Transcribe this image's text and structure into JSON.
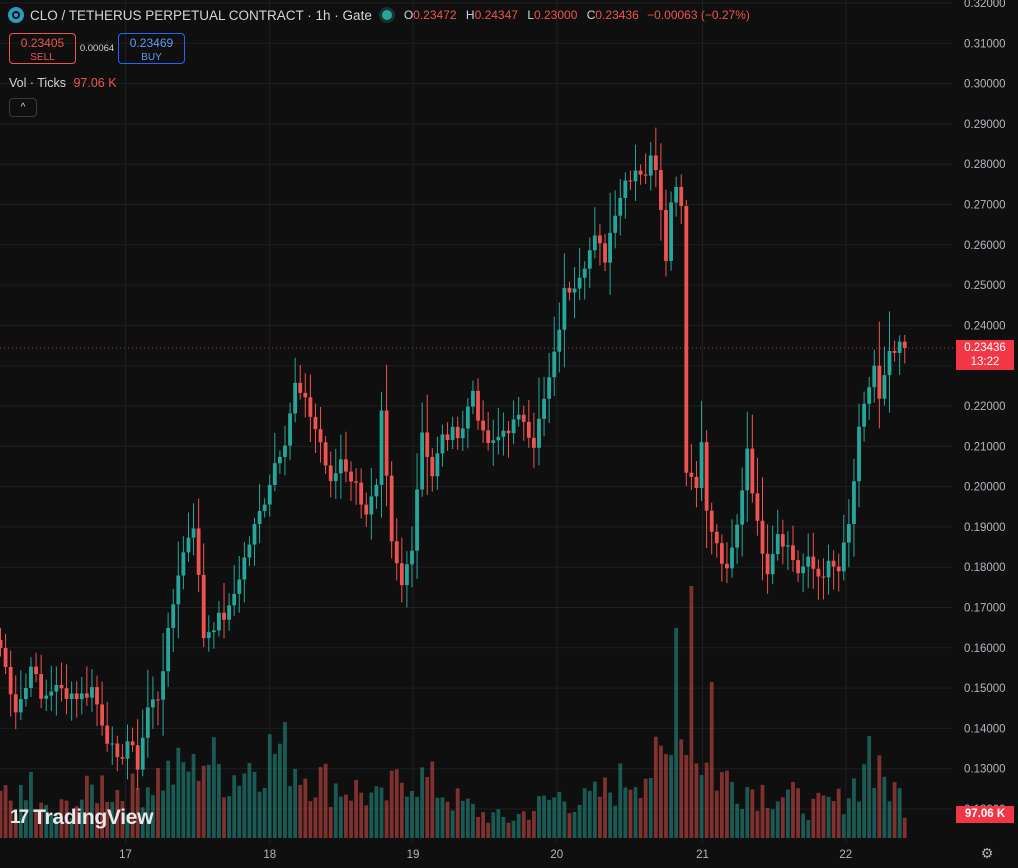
{
  "header": {
    "title": "CLO / TETHERUS PERPETUAL CONTRACT · 1h · Gate",
    "o_label": "O",
    "o": "0.23472",
    "h_label": "H",
    "h": "0.24347",
    "l_label": "L",
    "l": "0.23000",
    "c_label": "C",
    "c": "0.23436",
    "change": "−0.00063 (−0.27%)"
  },
  "trade": {
    "sell_price": "0.23405",
    "sell_label": "SELL",
    "spread": "0.00064",
    "buy_price": "0.23469",
    "buy_label": "BUY"
  },
  "volume_legend": {
    "label": "Vol · Ticks",
    "value": "97.06 K"
  },
  "last_price": {
    "price": "0.23436",
    "countdown": "13:22"
  },
  "volume_tag": "97.06 K",
  "brand": "TradingView",
  "colors": {
    "up": "#26a69a",
    "down": "#ef5350",
    "background": "#0f0f0f"
  },
  "chart_data": {
    "type": "candlestick",
    "y_axis": {
      "min": 0.12,
      "max": 0.32,
      "ticks": [
        "0.32000",
        "0.31000",
        "0.30000",
        "0.29000",
        "0.28000",
        "0.27000",
        "0.26000",
        "0.25000",
        "0.24000",
        "0.23000",
        "0.22000",
        "0.21000",
        "0.20000",
        "0.19000",
        "0.18000",
        "0.17000",
        "0.16000",
        "0.15000",
        "0.14000",
        "0.13000",
        "0.12000"
      ]
    },
    "x_axis": {
      "ticks": [
        "17",
        "18",
        "19",
        "20",
        "21",
        "22"
      ]
    },
    "anchors": [
      [
        0,
        0.16
      ],
      [
        3,
        0.145
      ],
      [
        5,
        0.15
      ],
      [
        6,
        0.157
      ],
      [
        8,
        0.147
      ],
      [
        10,
        0.15
      ],
      [
        16,
        0.148
      ],
      [
        18,
        0.15
      ],
      [
        20,
        0.142
      ],
      [
        21,
        0.138
      ],
      [
        23,
        0.131
      ],
      [
        25,
        0.137
      ],
      [
        27,
        0.131
      ],
      [
        29,
        0.145
      ],
      [
        31,
        0.148
      ],
      [
        33,
        0.163
      ],
      [
        35,
        0.179
      ],
      [
        37,
        0.188
      ],
      [
        38,
        0.191
      ],
      [
        40,
        0.163
      ],
      [
        42,
        0.166
      ],
      [
        45,
        0.169
      ],
      [
        47,
        0.178
      ],
      [
        49,
        0.186
      ],
      [
        52,
        0.197
      ],
      [
        54,
        0.206
      ],
      [
        56,
        0.212
      ],
      [
        58,
        0.225
      ],
      [
        61,
        0.218
      ],
      [
        63,
        0.211
      ],
      [
        65,
        0.2
      ],
      [
        67,
        0.207
      ],
      [
        70,
        0.2
      ],
      [
        72,
        0.194
      ],
      [
        74,
        0.199
      ],
      [
        75,
        0.217
      ],
      [
        77,
        0.185
      ],
      [
        79,
        0.175
      ],
      [
        81,
        0.186
      ],
      [
        83,
        0.214
      ],
      [
        85,
        0.203
      ],
      [
        87,
        0.212
      ],
      [
        89,
        0.213
      ],
      [
        91,
        0.215
      ],
      [
        93,
        0.224
      ],
      [
        95,
        0.212
      ],
      [
        97,
        0.21
      ],
      [
        99,
        0.214
      ],
      [
        103,
        0.217
      ],
      [
        105,
        0.211
      ],
      [
        107,
        0.221
      ],
      [
        109,
        0.232
      ],
      [
        111,
        0.248
      ],
      [
        113,
        0.251
      ],
      [
        115,
        0.256
      ],
      [
        117,
        0.261
      ],
      [
        119,
        0.257
      ],
      [
        121,
        0.269
      ],
      [
        123,
        0.276
      ],
      [
        125,
        0.279
      ],
      [
        127,
        0.278
      ],
      [
        128,
        0.281
      ],
      [
        129,
        0.28
      ],
      [
        130,
        0.27
      ],
      [
        131,
        0.258
      ],
      [
        132,
        0.27
      ],
      [
        133,
        0.276
      ],
      [
        134,
        0.27
      ],
      [
        135,
        0.205
      ],
      [
        137,
        0.2
      ],
      [
        138,
        0.213
      ],
      [
        139,
        0.193
      ],
      [
        141,
        0.185
      ],
      [
        143,
        0.178
      ],
      [
        145,
        0.19
      ],
      [
        147,
        0.21
      ],
      [
        149,
        0.19
      ],
      [
        151,
        0.18
      ],
      [
        153,
        0.189
      ],
      [
        155,
        0.185
      ],
      [
        157,
        0.179
      ],
      [
        159,
        0.181
      ],
      [
        161,
        0.178
      ],
      [
        163,
        0.18
      ],
      [
        165,
        0.179
      ],
      [
        167,
        0.19
      ],
      [
        169,
        0.213
      ],
      [
        171,
        0.225
      ],
      [
        172,
        0.23
      ],
      [
        173,
        0.221
      ],
      [
        175,
        0.232
      ],
      [
        177,
        0.234
      ],
      [
        178,
        0.2344
      ]
    ],
    "volume_anchors": [
      [
        0,
        0.35
      ],
      [
        5,
        0.3
      ],
      [
        10,
        0.2
      ],
      [
        15,
        0.3
      ],
      [
        20,
        0.45
      ],
      [
        25,
        0.35
      ],
      [
        30,
        0.5
      ],
      [
        35,
        0.55
      ],
      [
        40,
        0.7
      ],
      [
        45,
        0.5
      ],
      [
        50,
        0.65
      ],
      [
        55,
        0.75
      ],
      [
        60,
        0.55
      ],
      [
        65,
        0.45
      ],
      [
        70,
        0.4
      ],
      [
        75,
        0.3
      ],
      [
        80,
        0.55
      ],
      [
        85,
        0.45
      ],
      [
        90,
        0.3
      ],
      [
        95,
        0.2
      ],
      [
        100,
        0.15
      ],
      [
        105,
        0.25
      ],
      [
        110,
        0.35
      ],
      [
        115,
        0.3
      ],
      [
        120,
        0.4
      ],
      [
        125,
        0.55
      ],
      [
        130,
        0.6
      ],
      [
        133,
        0.7
      ],
      [
        135,
        1.0
      ],
      [
        137,
        0.75
      ],
      [
        140,
        0.55
      ],
      [
        145,
        0.45
      ],
      [
        150,
        0.4
      ],
      [
        155,
        0.35
      ],
      [
        160,
        0.25
      ],
      [
        165,
        0.3
      ],
      [
        170,
        0.55
      ],
      [
        175,
        0.45
      ],
      [
        178,
        0.3
      ]
    ],
    "volume_spikes": [
      [
        6,
        0.55
      ],
      [
        38,
        0.7
      ],
      [
        133,
        1.75
      ],
      [
        136,
        2.1
      ],
      [
        140,
        1.3
      ],
      [
        171,
        0.85
      ]
    ]
  }
}
